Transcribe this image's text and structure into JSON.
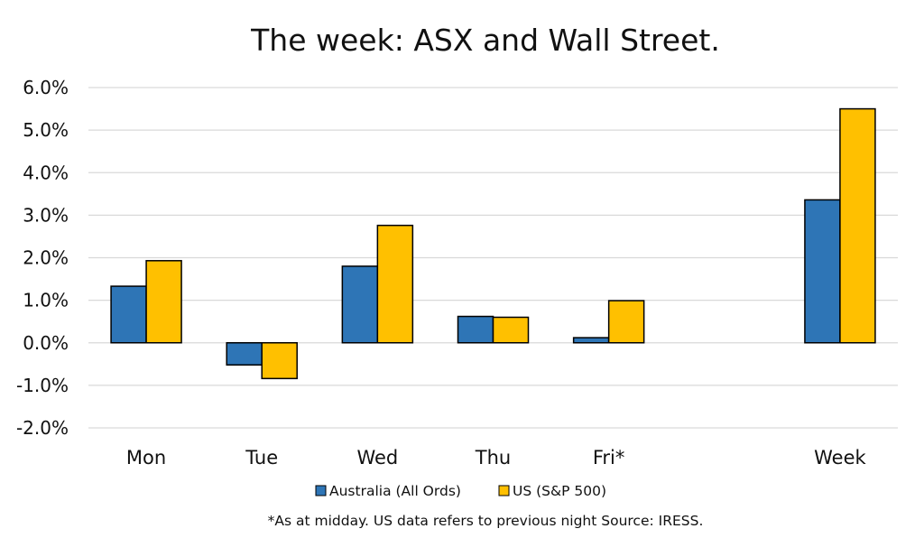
{
  "chart_data": {
    "type": "bar",
    "title": "The week:  ASX and Wall Street.",
    "categories": [
      "Mon",
      "Tue",
      "Wed",
      "Thu",
      "Fri*",
      "",
      "Week"
    ],
    "series": [
      {
        "name": "Australia (All Ords)",
        "color": "#2e75b6",
        "values": [
          1.33,
          -0.52,
          1.8,
          0.62,
          0.12,
          null,
          3.36
        ]
      },
      {
        "name": "US (S&P 500)",
        "color": "#ffc000",
        "values": [
          1.93,
          -0.84,
          2.76,
          0.6,
          0.99,
          null,
          5.5
        ]
      }
    ],
    "ylim": [
      -2.0,
      6.0
    ],
    "yticks": [
      -2.0,
      -1.0,
      0.0,
      1.0,
      2.0,
      3.0,
      4.0,
      5.0,
      6.0
    ],
    "ytick_labels": [
      "-2.0%",
      "-1.0%",
      "0.0%",
      "1.0%",
      "2.0%",
      "3.0%",
      "4.0%",
      "5.0%",
      "6.0%"
    ],
    "grid": true,
    "legend_position": "bottom",
    "footnote": "*As at midday. US data refers to previous night  Source:  IRESS.",
    "colors": {
      "gridline": "#d9d9d9",
      "bar_outline": "#000000",
      "text": "#111111"
    }
  }
}
